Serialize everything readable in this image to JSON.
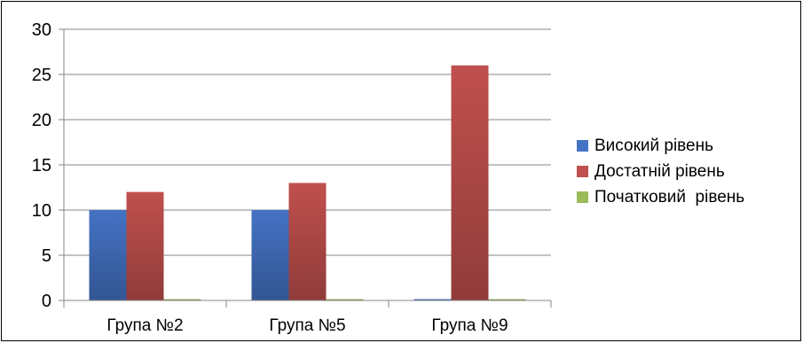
{
  "chart_data": {
    "type": "bar",
    "categories": [
      "Група №2",
      "Група №5",
      "Група №9"
    ],
    "series": [
      {
        "name": "Високий рівень",
        "values": [
          10,
          10,
          0
        ],
        "color": "#4472c4"
      },
      {
        "name": "Достатній рівень",
        "values": [
          12,
          13,
          26
        ],
        "color": "#c0504d"
      },
      {
        "name": "Початковий  рівень",
        "values": [
          0,
          0,
          0
        ],
        "color": "#9bbb59"
      }
    ],
    "ylim": [
      0,
      30
    ],
    "yticks": [
      "0",
      "5",
      "10",
      "15",
      "20",
      "25",
      "30"
    ],
    "grid": true,
    "legend_position": "right"
  }
}
